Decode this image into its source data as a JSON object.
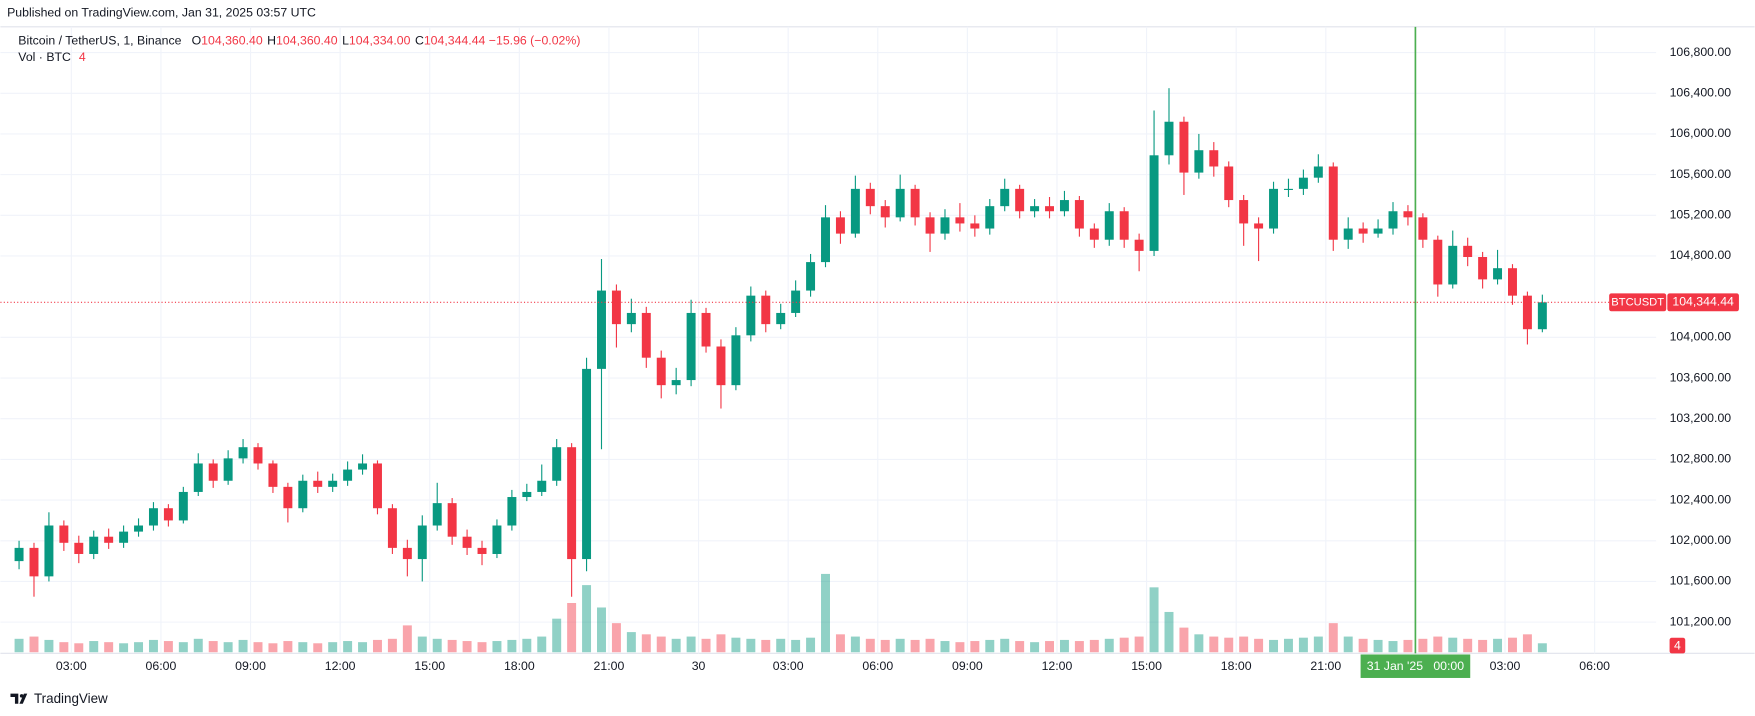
{
  "published": "Published on TradingView.com, Jan 31, 2025 03:57 UTC",
  "footer": "TradingView",
  "chart_data": {
    "type": "candlestick",
    "header": {
      "symbol": "Bitcoin / TetherUS, 1, Binance",
      "ohlc": [
        {
          "key": "O",
          "value": "104,360.40"
        },
        {
          "key": "H",
          "value": "104,360.40"
        },
        {
          "key": "L",
          "value": "104,334.00"
        },
        {
          "key": "C",
          "value": "104,344.44"
        }
      ],
      "change": "−15.96 (−0.02%)",
      "vol_name": "Vol · BTC",
      "vol_value": "4"
    },
    "up_color": "#089981",
    "down_color": "#f23645",
    "xlim": [
      1,
      56.06
    ],
    "xticks": [
      {
        "value": 3,
        "label": "03:00"
      },
      {
        "value": 6,
        "label": "06:00"
      },
      {
        "value": 9,
        "label": "09:00"
      },
      {
        "value": 12,
        "label": "12:00"
      },
      {
        "value": 15,
        "label": "15:00"
      },
      {
        "value": 18,
        "label": "18:00"
      },
      {
        "value": 21,
        "label": "21:00"
      },
      {
        "value": 24,
        "label": "30"
      },
      {
        "value": 27,
        "label": "03:00"
      },
      {
        "value": 30,
        "label": "06:00"
      },
      {
        "value": 33,
        "label": "09:00"
      },
      {
        "value": 36,
        "label": "12:00"
      },
      {
        "value": 39,
        "label": "15:00"
      },
      {
        "value": 42,
        "label": "18:00"
      },
      {
        "value": 45,
        "label": "21:00"
      },
      {
        "value": 51,
        "label": "03:00"
      },
      {
        "value": 54,
        "label": "06:00"
      }
    ],
    "ylim": [
      100893,
      107053
    ],
    "yticks": [
      {
        "value": 101200,
        "label": "101,200.00"
      },
      {
        "value": 101600,
        "label": "101,600.00"
      },
      {
        "value": 102000,
        "label": "102,000.00"
      },
      {
        "value": 102400,
        "label": "102,400.00"
      },
      {
        "value": 102800,
        "label": "102,800.00"
      },
      {
        "value": 103200,
        "label": "103,200.00"
      },
      {
        "value": 103600,
        "label": "103,600.00"
      },
      {
        "value": 104000,
        "label": "104,000.00"
      },
      {
        "value": 104800,
        "label": "104,800.00"
      },
      {
        "value": 105200,
        "label": "105,200.00"
      },
      {
        "value": 105600,
        "label": "105,600.00"
      },
      {
        "value": 106000,
        "label": "106,000.00"
      },
      {
        "value": 106400,
        "label": "106,400.00"
      },
      {
        "value": 106800,
        "label": "106,800.00"
      }
    ],
    "grid": true,
    "last_price": {
      "value": 104344.44,
      "label": "104,344.44",
      "symbol": "BTCUSDT"
    },
    "crosshair": {
      "value": 48,
      "label": "31 Jan '25   00:00",
      "color": "#4caf50"
    },
    "vlim": [
      0,
      400
    ],
    "x": [
      1,
      1.5,
      2,
      2.5,
      3,
      3.5,
      4,
      4.5,
      5,
      5.5,
      6,
      6.5,
      7,
      7.5,
      8,
      8.5,
      9,
      9.5,
      10,
      10.5,
      11,
      11.5,
      12,
      12.5,
      13,
      13.5,
      14,
      14.5,
      15,
      15.5,
      16,
      16.5,
      17,
      17.5,
      18,
      18.5,
      19,
      19.5,
      20,
      20.5,
      21,
      21.5,
      22,
      22.5,
      23,
      23.5,
      24,
      24.5,
      25,
      25.5,
      26,
      26.5,
      27,
      27.5,
      28,
      28.5,
      29,
      29.5,
      30,
      30.5,
      31,
      31.5,
      32,
      32.5,
      33,
      33.5,
      34,
      34.5,
      35,
      35.5,
      36,
      36.5,
      37,
      37.5,
      38,
      38.5,
      39,
      39.5,
      40,
      40.5,
      41,
      41.5,
      42,
      42.5,
      43,
      43.5,
      44,
      44.5,
      45,
      45.5,
      46,
      46.5,
      47,
      47.5,
      48,
      48.5,
      49,
      49.5,
      50,
      50.5,
      51,
      51.5,
      52
    ],
    "candles": [
      [
        101800,
        102000,
        101720,
        101930
      ],
      [
        101930,
        101980,
        101450,
        101650
      ],
      [
        101650,
        102280,
        101600,
        102150
      ],
      [
        102150,
        102200,
        101900,
        101980
      ],
      [
        101980,
        102050,
        101780,
        101870
      ],
      [
        101870,
        102100,
        101820,
        102040
      ],
      [
        102040,
        102120,
        101920,
        101980
      ],
      [
        101980,
        102150,
        101930,
        102090
      ],
      [
        102090,
        102220,
        102040,
        102150
      ],
      [
        102150,
        102380,
        102100,
        102320
      ],
      [
        102320,
        102360,
        102140,
        102200
      ],
      [
        102200,
        102530,
        102170,
        102480
      ],
      [
        102480,
        102860,
        102440,
        102760
      ],
      [
        102760,
        102800,
        102520,
        102590
      ],
      [
        102590,
        102890,
        102550,
        102810
      ],
      [
        102810,
        103000,
        102760,
        102920
      ],
      [
        102920,
        102960,
        102700,
        102760
      ],
      [
        102760,
        102790,
        102470,
        102530
      ],
      [
        102530,
        102570,
        102180,
        102320
      ],
      [
        102320,
        102650,
        102280,
        102590
      ],
      [
        102590,
        102680,
        102470,
        102530
      ],
      [
        102530,
        102660,
        102480,
        102590
      ],
      [
        102590,
        102780,
        102540,
        102700
      ],
      [
        102700,
        102850,
        102650,
        102760
      ],
      [
        102760,
        102790,
        102260,
        102320
      ],
      [
        102320,
        102360,
        101870,
        101930
      ],
      [
        101930,
        102010,
        101650,
        101820
      ],
      [
        101820,
        102250,
        101600,
        102150
      ],
      [
        102150,
        102570,
        102100,
        102370
      ],
      [
        102370,
        102420,
        101960,
        102040
      ],
      [
        102040,
        102110,
        101860,
        101930
      ],
      [
        101930,
        102000,
        101760,
        101870
      ],
      [
        101870,
        102210,
        101830,
        102150
      ],
      [
        102150,
        102500,
        102100,
        102430
      ],
      [
        102430,
        102560,
        102390,
        102480
      ],
      [
        102480,
        102750,
        102440,
        102590
      ],
      [
        102590,
        103000,
        102540,
        102920
      ],
      [
        102920,
        102960,
        101450,
        101820
      ],
      [
        101820,
        103800,
        101700,
        103690
      ],
      [
        103690,
        104770,
        102900,
        104460
      ],
      [
        104460,
        104520,
        103900,
        104130
      ],
      [
        104130,
        104380,
        104050,
        104240
      ],
      [
        104240,
        104300,
        103700,
        103800
      ],
      [
        103800,
        103870,
        103400,
        103530
      ],
      [
        103530,
        103700,
        103440,
        103580
      ],
      [
        103580,
        104370,
        103520,
        104240
      ],
      [
        104240,
        104290,
        103850,
        103910
      ],
      [
        103910,
        103980,
        103300,
        103530
      ],
      [
        103530,
        104100,
        103480,
        104020
      ],
      [
        104020,
        104500,
        103960,
        104410
      ],
      [
        104410,
        104460,
        104050,
        104130
      ],
      [
        104130,
        104330,
        104080,
        104240
      ],
      [
        104240,
        104560,
        104200,
        104460
      ],
      [
        104460,
        104820,
        104400,
        104740
      ],
      [
        104740,
        105300,
        104690,
        105180
      ],
      [
        105180,
        105240,
        104920,
        105020
      ],
      [
        105020,
        105590,
        104980,
        105460
      ],
      [
        105460,
        105520,
        105210,
        105290
      ],
      [
        105290,
        105350,
        105080,
        105180
      ],
      [
        105180,
        105600,
        105140,
        105460
      ],
      [
        105460,
        105500,
        105100,
        105180
      ],
      [
        105180,
        105230,
        104840,
        105020
      ],
      [
        105020,
        105260,
        104960,
        105180
      ],
      [
        105180,
        105320,
        105040,
        105120
      ],
      [
        105120,
        105200,
        104990,
        105070
      ],
      [
        105070,
        105360,
        105010,
        105290
      ],
      [
        105290,
        105560,
        105240,
        105460
      ],
      [
        105460,
        105500,
        105170,
        105240
      ],
      [
        105240,
        105360,
        105180,
        105290
      ],
      [
        105290,
        105380,
        105170,
        105240
      ],
      [
        105240,
        105440,
        105190,
        105350
      ],
      [
        105350,
        105390,
        104990,
        105070
      ],
      [
        105070,
        105120,
        104880,
        104960
      ],
      [
        104960,
        105320,
        104900,
        105240
      ],
      [
        105240,
        105280,
        104880,
        104960
      ],
      [
        104960,
        105020,
        104650,
        104850
      ],
      [
        104850,
        106230,
        104800,
        105790
      ],
      [
        105790,
        106450,
        105700,
        106120
      ],
      [
        106120,
        106170,
        105400,
        105620
      ],
      [
        105620,
        106000,
        105560,
        105840
      ],
      [
        105840,
        105920,
        105580,
        105680
      ],
      [
        105680,
        105730,
        105280,
        105350
      ],
      [
        105350,
        105400,
        104900,
        105120
      ],
      [
        105120,
        105180,
        104750,
        105070
      ],
      [
        105070,
        105530,
        105020,
        105460
      ],
      [
        105460,
        105560,
        105380,
        105460
      ],
      [
        105460,
        105650,
        105400,
        105570
      ],
      [
        105570,
        105800,
        105520,
        105680
      ],
      [
        105680,
        105720,
        104850,
        104960
      ],
      [
        104960,
        105180,
        104870,
        105070
      ],
      [
        105070,
        105130,
        104930,
        105020
      ],
      [
        105020,
        105160,
        104980,
        105070
      ],
      [
        105070,
        105330,
        105010,
        105240
      ],
      [
        105240,
        105300,
        105100,
        105180
      ],
      [
        105180,
        105220,
        104880,
        104960
      ],
      [
        104960,
        105000,
        104400,
        104520
      ],
      [
        104520,
        105050,
        104480,
        104900
      ],
      [
        104900,
        104980,
        104700,
        104790
      ],
      [
        104790,
        104840,
        104480,
        104570
      ],
      [
        104570,
        104860,
        104520,
        104680
      ],
      [
        104680,
        104720,
        104320,
        104410
      ],
      [
        104410,
        104450,
        103930,
        104080
      ],
      [
        104080,
        104420,
        104050,
        104344.44
      ]
    ],
    "volume": [
      60,
      70,
      55,
      45,
      40,
      50,
      45,
      40,
      45,
      55,
      50,
      45,
      60,
      50,
      45,
      55,
      45,
      40,
      50,
      45,
      40,
      45,
      50,
      45,
      55,
      60,
      120,
      70,
      60,
      55,
      50,
      45,
      50,
      55,
      60,
      70,
      150,
      220,
      300,
      200,
      130,
      90,
      80,
      70,
      60,
      70,
      60,
      80,
      65,
      60,
      55,
      60,
      55,
      65,
      350,
      80,
      70,
      60,
      55,
      60,
      55,
      60,
      50,
      45,
      50,
      55,
      60,
      50,
      45,
      50,
      55,
      50,
      55,
      60,
      65,
      70,
      290,
      180,
      110,
      80,
      70,
      65,
      70,
      60,
      55,
      60,
      65,
      70,
      130,
      70,
      60,
      55,
      50,
      55,
      60,
      70,
      65,
      60,
      55,
      60,
      65,
      80,
      40
    ]
  }
}
